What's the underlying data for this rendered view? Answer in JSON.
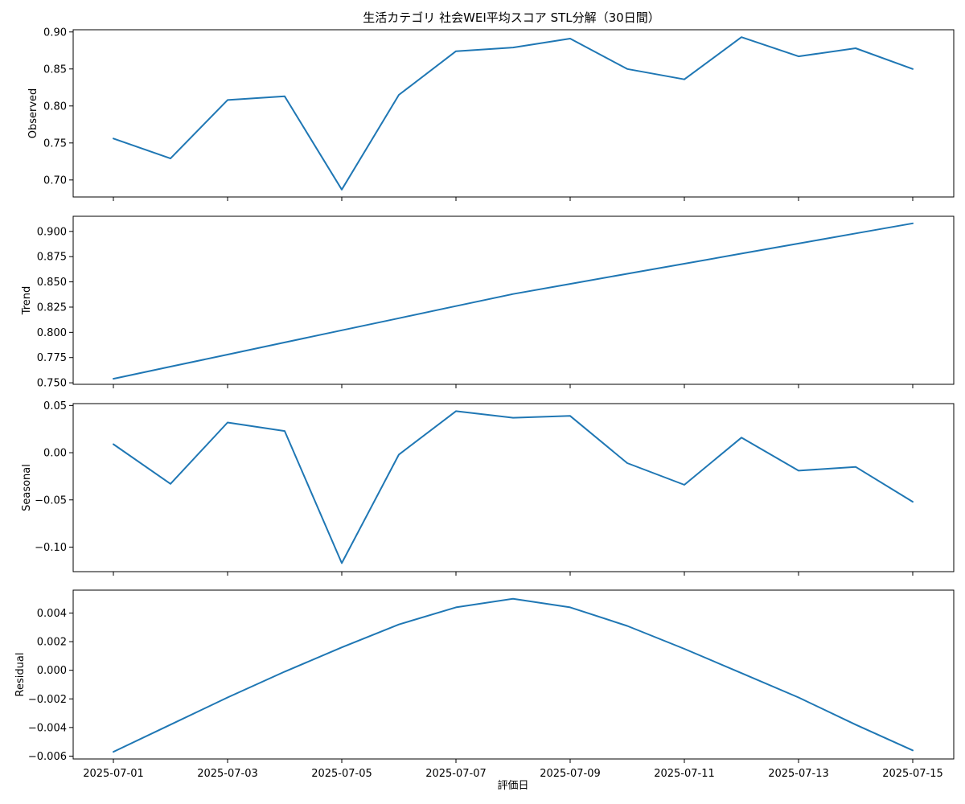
{
  "chart_data": {
    "type": "line",
    "title": "生活カテゴリ 社会WEI平均スコア STL分解（30日間）",
    "xlabel": "評価日",
    "x": [
      "2025-07-01",
      "2025-07-02",
      "2025-07-03",
      "2025-07-04",
      "2025-07-05",
      "2025-07-06",
      "2025-07-07",
      "2025-07-08",
      "2025-07-09",
      "2025-07-10",
      "2025-07-11",
      "2025-07-12",
      "2025-07-13",
      "2025-07-14",
      "2025-07-15"
    ],
    "x_tick_labels": [
      "2025-07-01",
      "2025-07-03",
      "2025-07-05",
      "2025-07-07",
      "2025-07-09",
      "2025-07-11",
      "2025-07-13",
      "2025-07-15"
    ],
    "color": "#1f77b4",
    "grid": false,
    "panels": [
      {
        "ylabel": "Observed",
        "ylim": [
          0.677,
          0.903
        ],
        "yticks": [
          "0.70",
          "0.75",
          "0.80",
          "0.85",
          "0.90"
        ],
        "ytick_values": [
          0.7,
          0.75,
          0.8,
          0.85,
          0.9
        ],
        "values": [
          0.756,
          0.729,
          0.808,
          0.813,
          0.687,
          0.815,
          0.874,
          0.879,
          0.891,
          0.85,
          0.836,
          0.893,
          0.867,
          0.878,
          0.85
        ]
      },
      {
        "ylabel": "Trend",
        "ylim": [
          0.7485,
          0.915
        ],
        "yticks": [
          "0.750",
          "0.775",
          "0.800",
          "0.825",
          "0.850",
          "0.875",
          "0.900"
        ],
        "ytick_values": [
          0.75,
          0.775,
          0.8,
          0.825,
          0.85,
          0.875,
          0.9
        ],
        "values": [
          0.754,
          0.766,
          0.778,
          0.79,
          0.802,
          0.814,
          0.826,
          0.838,
          0.848,
          0.858,
          0.868,
          0.878,
          0.888,
          0.898,
          0.908
        ]
      },
      {
        "ylabel": "Seasonal",
        "ylim": [
          -0.126,
          0.052
        ],
        "yticks": [
          "−0.10",
          "−0.05",
          "0.00",
          "0.05"
        ],
        "ytick_values": [
          -0.1,
          -0.05,
          0.0,
          0.05
        ],
        "values": [
          0.009,
          -0.033,
          0.032,
          0.023,
          -0.117,
          -0.002,
          0.044,
          0.037,
          0.039,
          -0.011,
          -0.034,
          0.016,
          -0.019,
          -0.015,
          -0.052
        ]
      },
      {
        "ylabel": "Residual",
        "ylim": [
          -0.0062,
          0.0056
        ],
        "yticks": [
          "−0.006",
          "−0.004",
          "−0.002",
          "0.000",
          "0.002",
          "0.004"
        ],
        "ytick_values": [
          -0.006,
          -0.004,
          -0.002,
          0.0,
          0.002,
          0.004
        ],
        "values": [
          -0.0057,
          -0.0038,
          -0.0019,
          -0.0001,
          0.0016,
          0.0032,
          0.0044,
          0.005,
          0.0044,
          0.0031,
          0.0015,
          -0.0002,
          -0.0019,
          -0.0038,
          -0.0056
        ]
      }
    ]
  }
}
